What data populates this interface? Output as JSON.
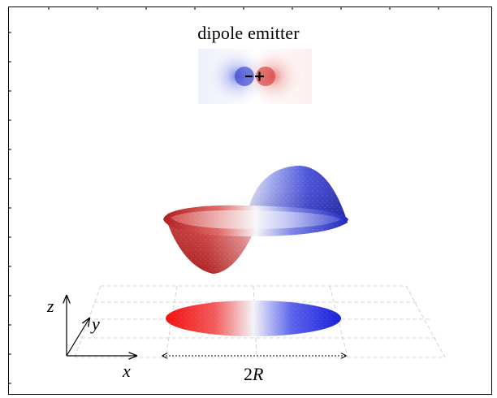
{
  "figure": {
    "title": "dipole emitter",
    "axes": {
      "x_label": "x",
      "y_label": "y",
      "z_label": "z"
    },
    "dimension": {
      "label_prefix": "2",
      "label_var": "R"
    },
    "dipole_symbols": {
      "negative": "−",
      "positive": "+"
    },
    "colors": {
      "negative": "#e31313",
      "positive": "#1a22c8",
      "neutral": "#ffffff",
      "grid": "#d6d6d6",
      "frame": "#000000"
    }
  }
}
